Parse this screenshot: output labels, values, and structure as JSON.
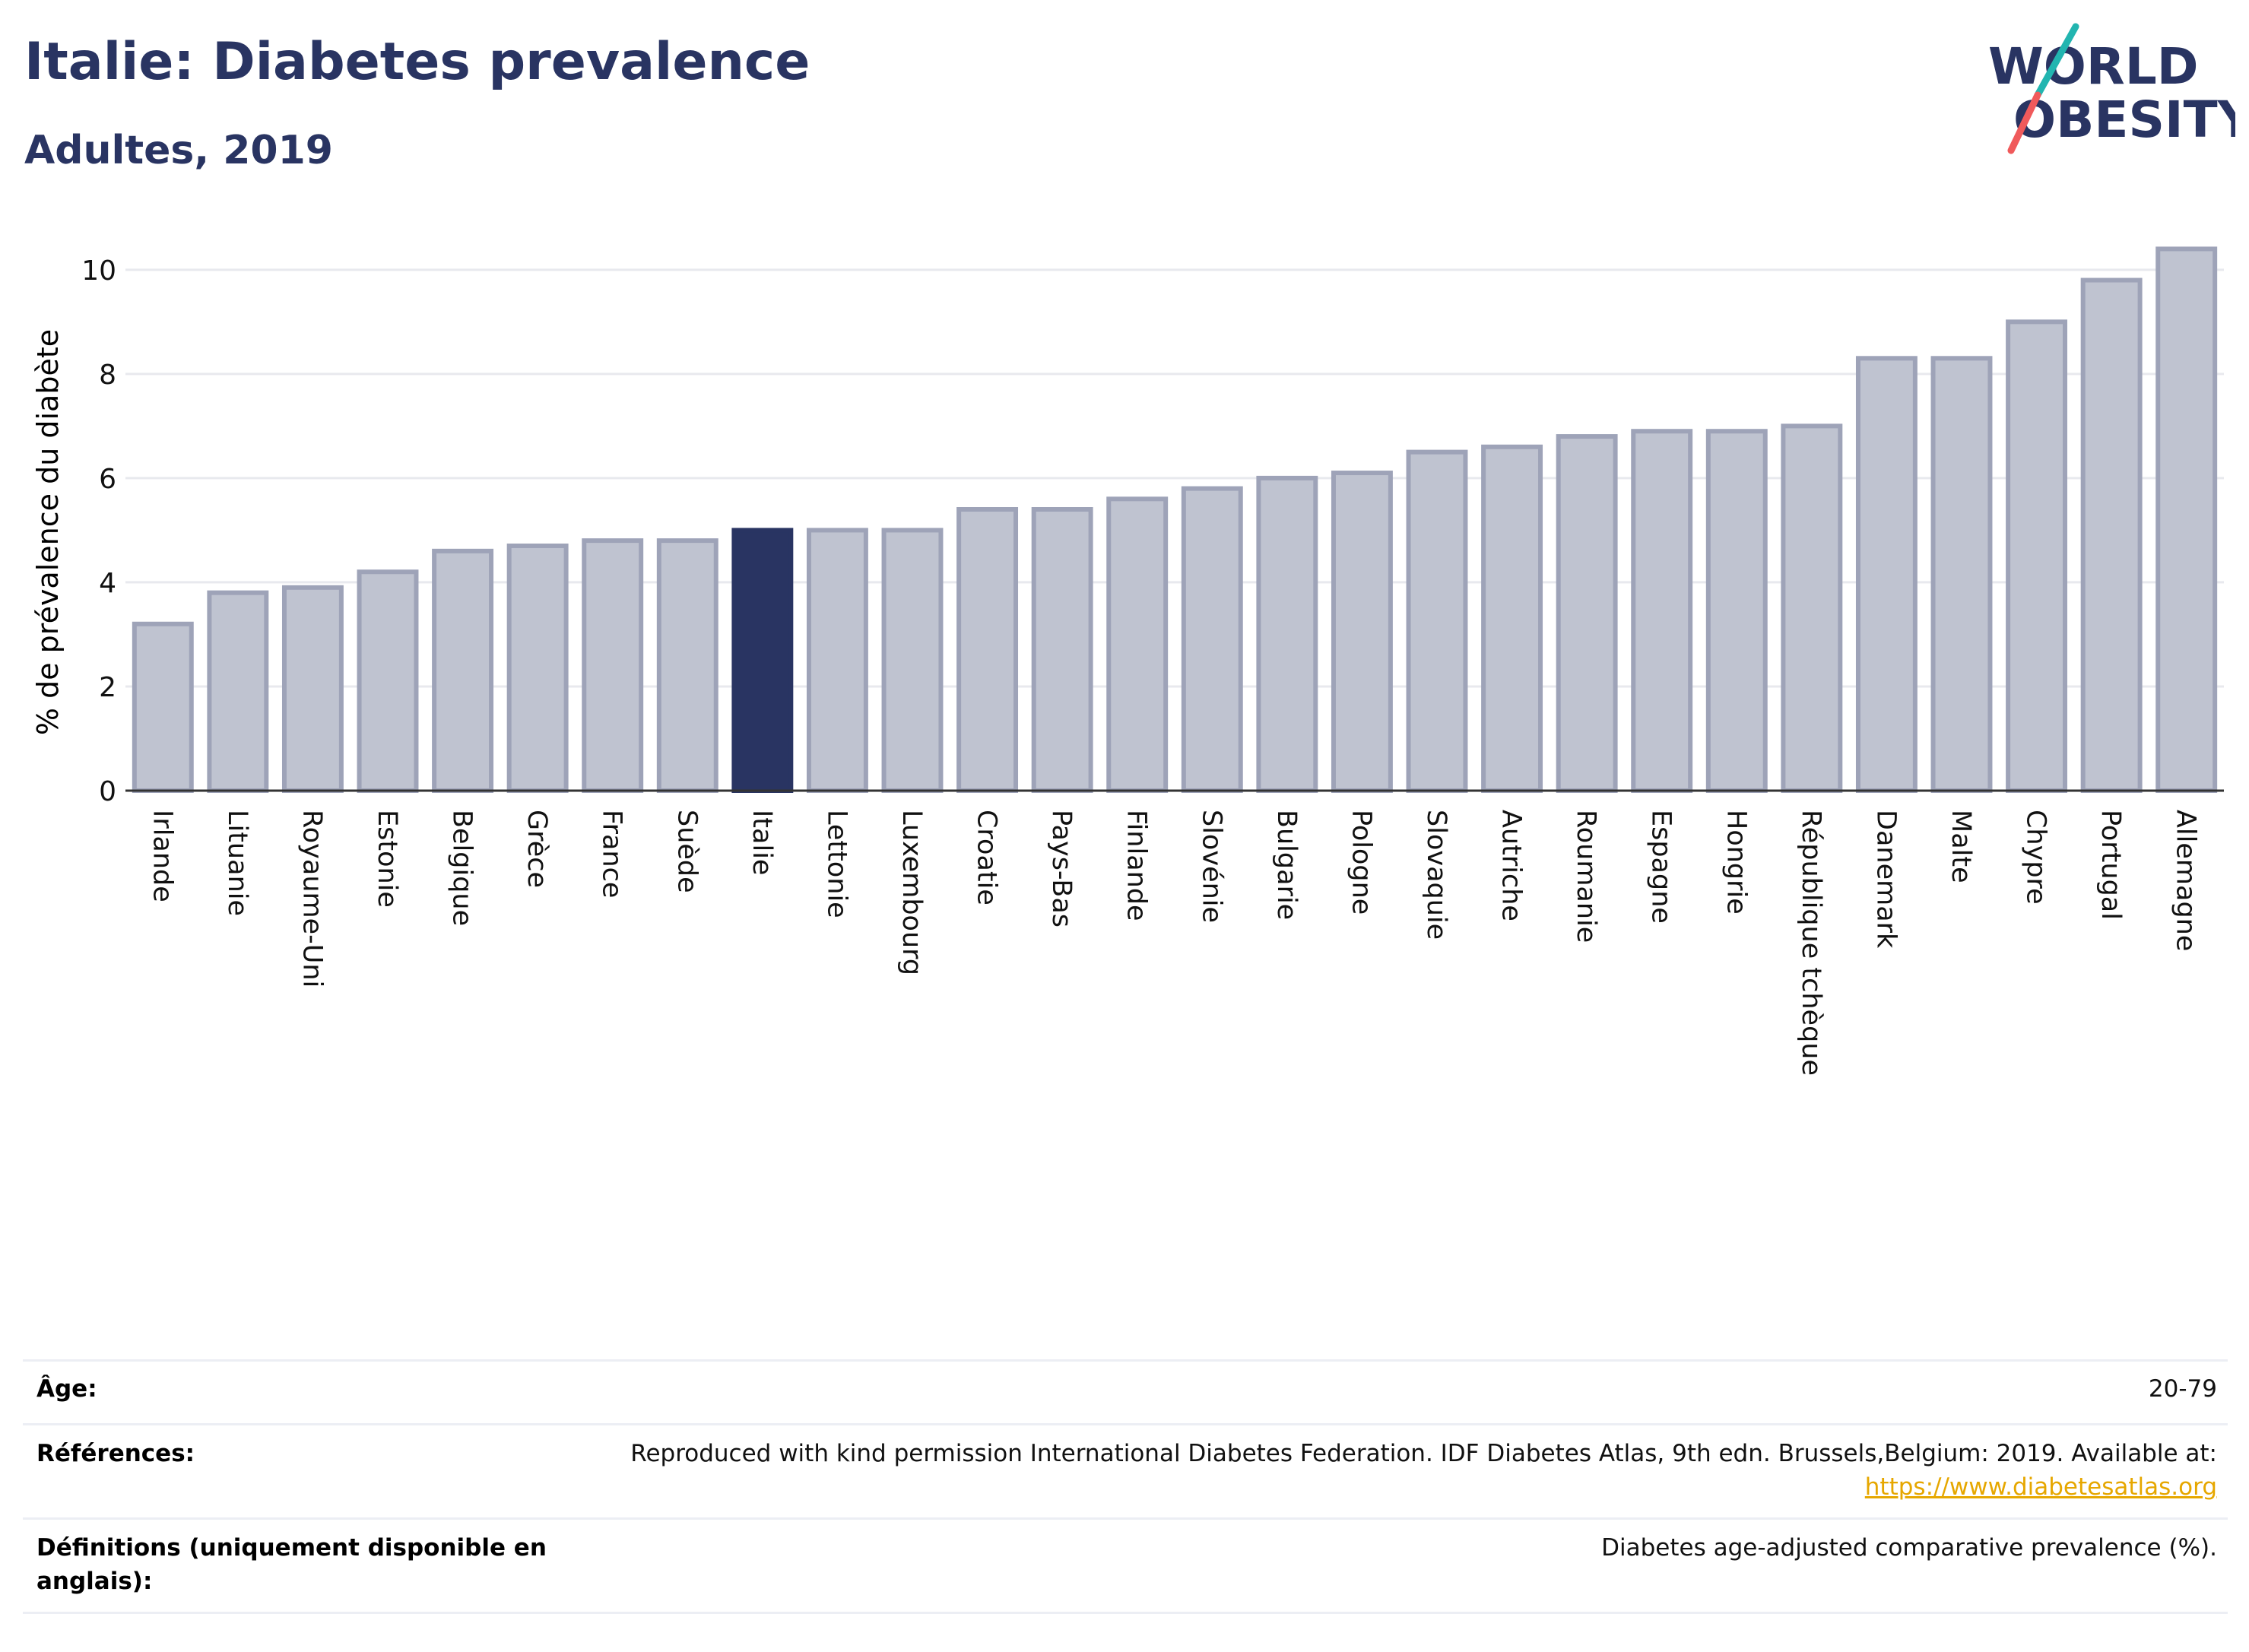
{
  "header": {
    "title": "Italie: Diabetes prevalence",
    "subtitle": "Adultes, 2019",
    "logo": {
      "line1": "WORLD",
      "line2": "OBESITY"
    }
  },
  "chart_data": {
    "type": "bar",
    "ylabel": "% de prévalence du diabète",
    "xlabel": "",
    "ylim": [
      0,
      10.8
    ],
    "yticks": [
      0,
      2,
      4,
      6,
      8,
      10
    ],
    "grid": true,
    "highlight": "Italie",
    "colors": {
      "bar": "#bfc3d0",
      "bar_border": "#9ea3b8",
      "highlight": "#293462",
      "grid": "#e8e9ee",
      "axis": "#333333"
    },
    "categories": [
      "Irlande",
      "Lituanie",
      "Royaume-Uni",
      "Estonie",
      "Belgique",
      "Grèce",
      "France",
      "Suède",
      "Italie",
      "Lettonie",
      "Luxembourg",
      "Croatie",
      "Pays-Bas",
      "Finlande",
      "Slovénie",
      "Bulgarie",
      "Pologne",
      "Slovaquie",
      "Autriche",
      "Roumanie",
      "Espagne",
      "Hongrie",
      "République tchèque",
      "Danemark",
      "Malte",
      "Chypre",
      "Portugal",
      "Allemagne"
    ],
    "values": [
      3.2,
      3.8,
      3.9,
      4.2,
      4.6,
      4.7,
      4.8,
      4.8,
      5.0,
      5.0,
      5.0,
      5.4,
      5.4,
      5.6,
      5.8,
      6.0,
      6.1,
      6.5,
      6.6,
      6.8,
      6.9,
      6.9,
      7.0,
      8.3,
      8.3,
      9.0,
      9.8,
      10.4
    ]
  },
  "meta": {
    "age": {
      "label": "Âge:",
      "value": "20-79"
    },
    "references": {
      "label": "Références:",
      "value": "Reproduced with kind permission International Diabetes Federation. IDF Diabetes Atlas, 9th edn. Brussels,Belgium: 2019. Available at:",
      "link": "https://www.diabetesatlas.org"
    },
    "definitions": {
      "label_line1": "Définitions (uniquement disponible en",
      "label_line2": "anglais):",
      "value": "Diabetes age-adjusted comparative prevalence (%)."
    }
  }
}
